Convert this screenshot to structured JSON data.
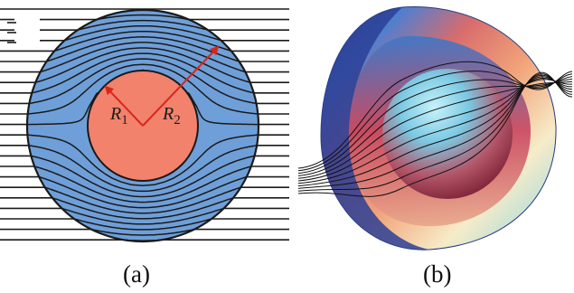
{
  "panel_a": {
    "caption": "(a)",
    "labels": {
      "r1": "R",
      "r1_sub": "1",
      "r2": "R",
      "r2_sub": "2"
    },
    "colors": {
      "shell": "#6f9fd8",
      "core": "#f2826c",
      "arrow": "#d8261c",
      "lines": "#1a1a1a"
    }
  },
  "panel_b": {
    "caption": "(b)"
  }
}
